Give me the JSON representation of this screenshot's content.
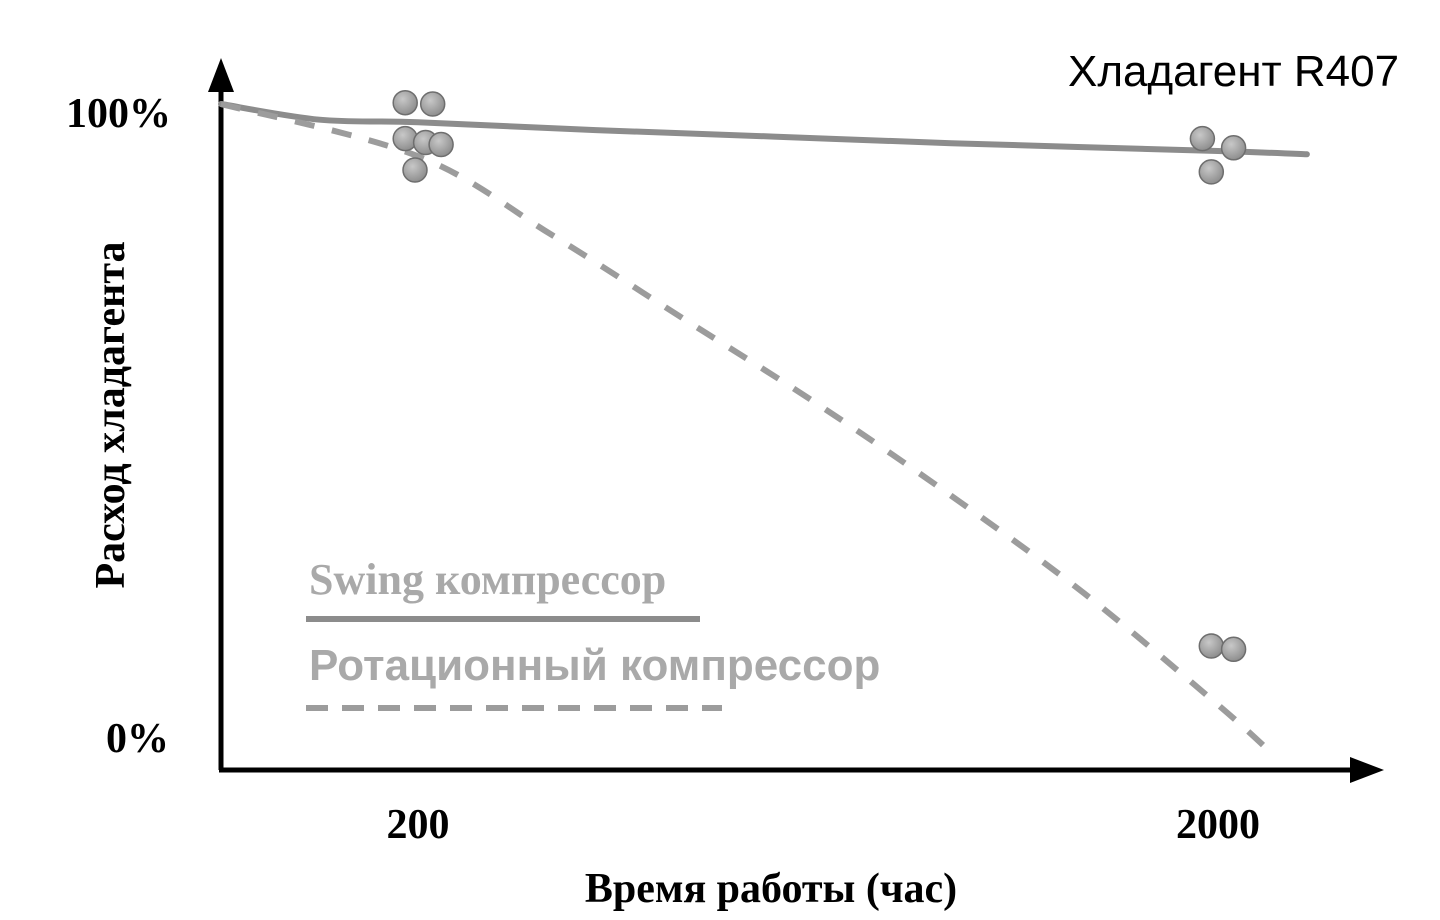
{
  "chart_data": {
    "type": "line",
    "title": "Хладагент R407",
    "xlabel": "Время работы (час)",
    "ylabel": "Расход хладагента",
    "x_ticks": [
      "200",
      "2000"
    ],
    "y_ticks": [
      "0%",
      "100%"
    ],
    "grid": false,
    "legend_placement": "bottom-left",
    "series": [
      {
        "name": "Swing компрессор",
        "style": "solid",
        "color": "#8c8c8c",
        "x": [
          0,
          100,
          200,
          600,
          1000,
          1400,
          2000,
          2200
        ],
        "y": [
          100,
          97.6,
          97.2,
          96,
          95,
          94,
          92.8,
          92.3
        ],
        "points": [
          {
            "x": 187,
            "y": 100.2
          },
          {
            "x": 233,
            "y": 100
          },
          {
            "x": 187,
            "y": 94.7
          },
          {
            "x": 217,
            "y": 94.1
          },
          {
            "x": 252,
            "y": 93.8
          },
          {
            "x": 197,
            "y": 89.9
          },
          {
            "x": 1965,
            "y": 94.7
          },
          {
            "x": 2035,
            "y": 93.3
          },
          {
            "x": 1985,
            "y": 89.6
          }
        ]
      },
      {
        "name": "Ротационный компрессор",
        "style": "dashed",
        "color": "#999999",
        "x": [
          0,
          200,
          500,
          800,
          1100,
          1400,
          1700,
          2000,
          2130
        ],
        "y": [
          100,
          92,
          80,
          67,
          54,
          40,
          25,
          8,
          0
        ],
        "points": [
          {
            "x": 1985,
            "y": 17
          },
          {
            "x": 2035,
            "y": 16.5
          }
        ]
      }
    ]
  }
}
